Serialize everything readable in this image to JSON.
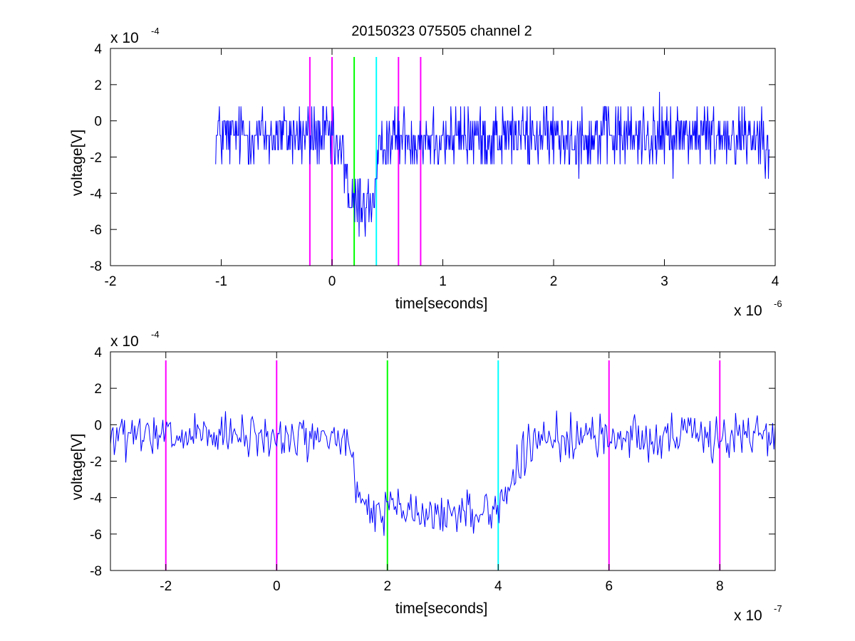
{
  "figure": {
    "title": "20150323 075505 channel 2"
  },
  "colors": {
    "signal": "#0000ff",
    "marker_magenta": "#ff00ff",
    "marker_green": "#00ff00",
    "marker_cyan": "#00ffff",
    "axes": "#000000"
  },
  "chart_data": [
    {
      "type": "line",
      "xlabel": "time[seconds]",
      "ylabel": "voltage[V]",
      "x_multiplier_label": "x 10",
      "x_multiplier_exp": "-6",
      "y_multiplier_label": "x 10",
      "y_multiplier_exp": "-4",
      "xlim": [
        -2,
        4
      ],
      "ylim": [
        -8,
        4
      ],
      "xticks": [
        -2,
        -1,
        0,
        1,
        2,
        3,
        4
      ],
      "xtick_labels": [
        "-2",
        "-1",
        "0",
        "1",
        "2",
        "3",
        "4"
      ],
      "yticks": [
        -8,
        -6,
        -4,
        -2,
        0,
        2,
        4
      ],
      "ytick_labels": [
        "-8",
        "-6",
        "-4",
        "-2",
        "0",
        "2",
        "4"
      ],
      "grid": false,
      "signal_x_range": [
        -1.05,
        3.95
      ],
      "signal_profile": [
        {
          "x": -1.05,
          "level": -0.8
        },
        {
          "x": -0.05,
          "level": -0.8
        },
        {
          "x": 0.05,
          "level": -1.6
        },
        {
          "x": 0.13,
          "level": -2.4
        },
        {
          "x": 0.15,
          "level": -4.6
        },
        {
          "x": 0.38,
          "level": -4.6
        },
        {
          "x": 0.43,
          "level": -2.0
        },
        {
          "x": 0.48,
          "level": -0.9
        },
        {
          "x": 3.95,
          "level": -0.8
        }
      ],
      "markers": [
        {
          "x": -0.2,
          "color": "#ff00ff"
        },
        {
          "x": 0.0,
          "color": "#ff00ff"
        },
        {
          "x": 0.2,
          "color": "#00ff00"
        },
        {
          "x": 0.4,
          "color": "#00ffff"
        },
        {
          "x": 0.6,
          "color": "#ff00ff"
        },
        {
          "x": 0.8,
          "color": "#ff00ff"
        }
      ]
    },
    {
      "type": "line",
      "xlabel": "time[seconds]",
      "ylabel": "voltage[V]",
      "x_multiplier_label": "x 10",
      "x_multiplier_exp": "-7",
      "y_multiplier_label": "x 10",
      "y_multiplier_exp": "-4",
      "xlim": [
        -3,
        9
      ],
      "ylim": [
        -8,
        4
      ],
      "xticks": [
        -2,
        0,
        2,
        4,
        6,
        8
      ],
      "xtick_labels": [
        "-2",
        "0",
        "2",
        "4",
        "6",
        "8"
      ],
      "yticks": [
        -8,
        -6,
        -4,
        -2,
        0,
        2,
        4
      ],
      "ytick_labels": [
        "-8",
        "-6",
        "-4",
        "-2",
        "0",
        "2",
        "4"
      ],
      "grid": false,
      "signal_x_range": [
        -3,
        9
      ],
      "signal_profile": [
        {
          "x": -3.0,
          "level": -0.7
        },
        {
          "x": 1.1,
          "level": -0.7
        },
        {
          "x": 1.3,
          "level": -1.0
        },
        {
          "x": 1.45,
          "level": -4.0
        },
        {
          "x": 1.7,
          "level": -4.8
        },
        {
          "x": 2.0,
          "level": -4.6
        },
        {
          "x": 2.8,
          "level": -5.0
        },
        {
          "x": 4.0,
          "level": -4.6
        },
        {
          "x": 4.3,
          "level": -2.6
        },
        {
          "x": 4.6,
          "level": -1.2
        },
        {
          "x": 5.0,
          "level": -0.7
        },
        {
          "x": 9.0,
          "level": -0.6
        }
      ],
      "markers": [
        {
          "x": -2,
          "color": "#ff00ff"
        },
        {
          "x": 0,
          "color": "#ff00ff"
        },
        {
          "x": 2,
          "color": "#00ff00"
        },
        {
          "x": 4,
          "color": "#00ffff"
        },
        {
          "x": 6,
          "color": "#ff00ff"
        },
        {
          "x": 8,
          "color": "#ff00ff"
        }
      ]
    }
  ]
}
